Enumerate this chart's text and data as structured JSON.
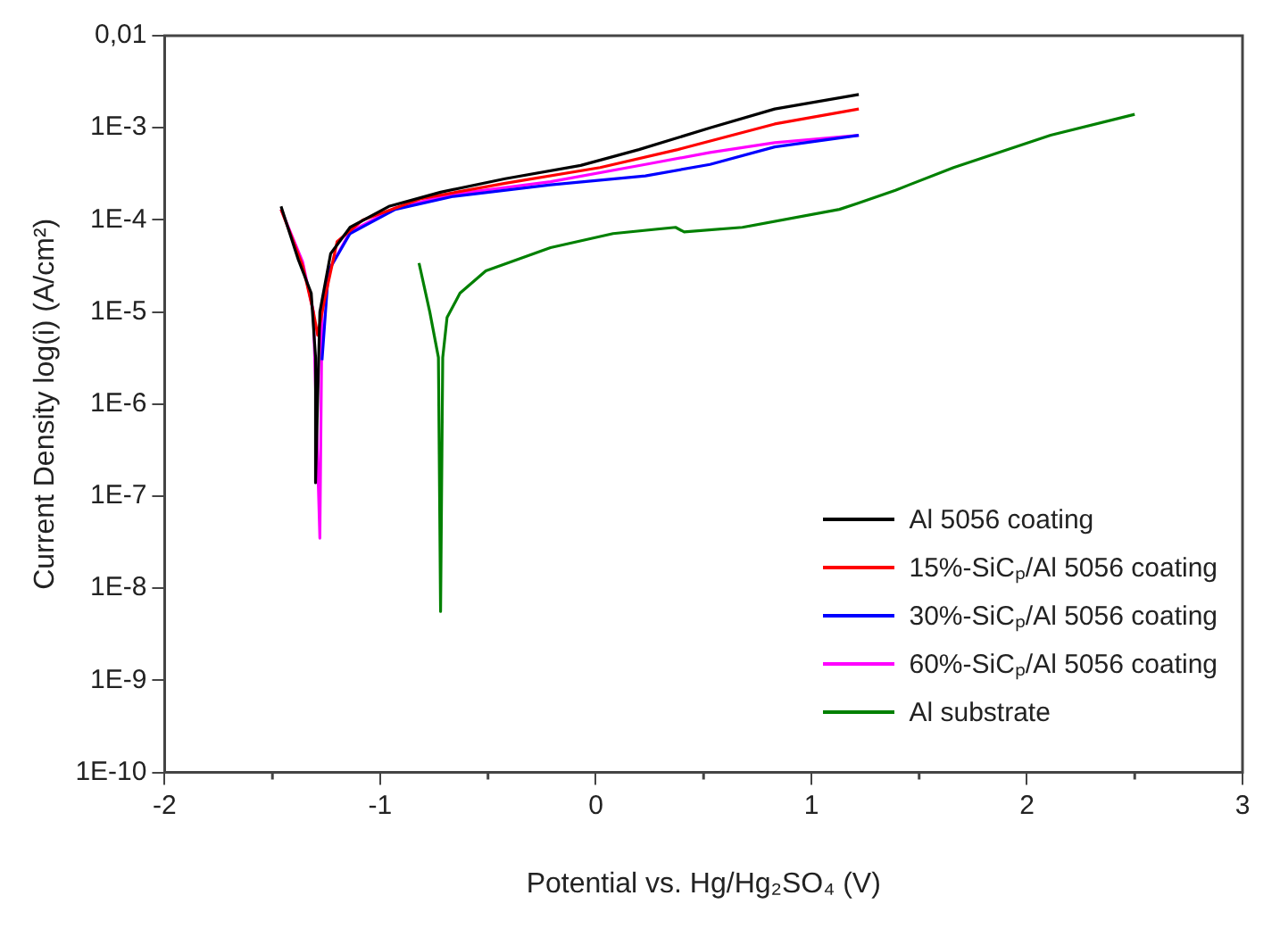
{
  "chart_data": {
    "type": "line",
    "xlabel": "Potential vs. Hg/Hg₂SO₄ (V)",
    "ylabel": "Current Density log(i) (A/cm²)",
    "log": "y",
    "grid": false,
    "legend": "bottom right",
    "marker": "none",
    "line_style": "solid",
    "xlim": [
      -2,
      3
    ],
    "xticks": [
      -2,
      -1,
      0,
      1,
      2,
      3
    ],
    "ylim": [
      1e-10,
      0.01
    ],
    "yticks": [
      {
        "value": 1e-10,
        "label": "1E-10"
      },
      {
        "value": 1e-09,
        "label": "1E-9"
      },
      {
        "value": 1e-08,
        "label": "1E-8"
      },
      {
        "value": 1e-07,
        "label": "1E-7"
      },
      {
        "value": 1e-06,
        "label": "1E-6"
      },
      {
        "value": 1e-05,
        "label": "1E-5"
      },
      {
        "value": 0.0001,
        "label": "1E-4"
      },
      {
        "value": 0.001,
        "label": "1E-3"
      },
      {
        "value": 0.01,
        "label": "0,01"
      }
    ],
    "series": [
      {
        "name": "Al 5056 coating",
        "color": "#000000",
        "x": [
          -1.46,
          -1.38,
          -1.32,
          -1.3,
          -1.3,
          -1.28,
          -1.23,
          -1.14,
          -0.96,
          -0.72,
          -0.42,
          -0.07,
          0.2,
          0.53,
          0.83,
          1.22
        ],
        "values": [
          0.00014,
          3.7e-05,
          1.6e-05,
          3.2e-06,
          1.4e-07,
          1e-05,
          4.3e-05,
          8.3e-05,
          0.00014,
          0.0002,
          0.00028,
          0.00039,
          0.00058,
          0.001,
          0.0016,
          0.0023
        ]
      },
      {
        "name": "15%-SiCₚ/Al 5056 coating",
        "color": "#ff0000",
        "x": [
          -1.46,
          -1.36,
          -1.31,
          -1.29,
          -1.26,
          -1.2,
          -1.08,
          -0.81,
          -0.42,
          0.02,
          0.38,
          0.83,
          1.22
        ],
        "values": [
          0.00013,
          3.2e-05,
          1e-05,
          5.6e-06,
          1.3e-05,
          5.8e-05,
          0.0001,
          0.00017,
          0.00025,
          0.00037,
          0.00058,
          0.0011,
          0.0016
        ]
      },
      {
        "name": "30%-SiCₚ/Al 5056 coating",
        "color": "#0000ff",
        "x": [
          -1.27,
          -1.24,
          -1.14,
          -0.93,
          -0.66,
          -0.21,
          0.23,
          0.53,
          0.83,
          1.22
        ],
        "values": [
          3e-06,
          2.8e-05,
          7.1e-05,
          0.00013,
          0.00018,
          0.00024,
          0.0003,
          0.0004,
          0.00062,
          0.00083
        ]
      },
      {
        "name": "60%-SiCₚ/Al 5056 coating",
        "color": "#ff00ff",
        "x": [
          -1.46,
          -1.36,
          -1.31,
          -1.28,
          -1.27,
          -1.24,
          -1.14,
          -0.93,
          -0.66,
          -0.21,
          0.23,
          0.53,
          0.83,
          1.22
        ],
        "values": [
          0.00013,
          3.5e-05,
          1e-05,
          3.5e-08,
          1e-05,
          2.8e-05,
          7.4e-05,
          0.000135,
          0.00019,
          0.00026,
          0.0004,
          0.00054,
          0.00069,
          0.00083
        ]
      },
      {
        "name": "Al substrate",
        "color": "#008000",
        "x": [
          -0.82,
          -0.77,
          -0.73,
          -0.72,
          -0.71,
          -0.69,
          -0.63,
          -0.51,
          -0.21,
          0.08,
          0.37,
          0.41,
          0.68,
          1.13,
          1.21,
          1.39,
          1.66,
          2.11,
          2.5
        ],
        "values": [
          3.4e-05,
          1e-05,
          3.2e-06,
          5.6e-09,
          3.2e-06,
          8.7e-06,
          1.6e-05,
          2.8e-05,
          5e-05,
          7.1e-05,
          8.3e-05,
          7.4e-05,
          8.3e-05,
          0.00013,
          0.00015,
          0.00021,
          0.00037,
          0.00083,
          0.0014
        ]
      }
    ]
  }
}
